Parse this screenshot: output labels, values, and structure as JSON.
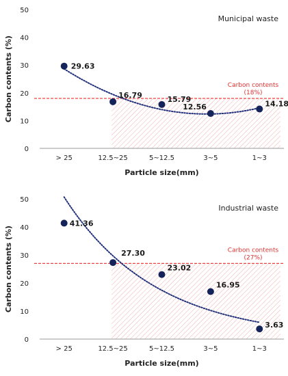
{
  "colors": {
    "point": "#14245a",
    "trend": "#1f2f7a",
    "reference": "#e03030",
    "hatch": "#f3b5b5",
    "axis": "#9a9a9a"
  },
  "chart_data": [
    {
      "type": "scatter",
      "title": "Municipal waste",
      "xlabel": "Particle size(mm)",
      "ylabel": "Carbon contents (%)",
      "categories": [
        "> 25",
        "12.5~25",
        "5~12.5",
        "3~5",
        "1~3"
      ],
      "values": [
        29.63,
        16.79,
        15.79,
        12.56,
        14.18
      ],
      "data_labels": [
        "29.63",
        "16.79",
        "15.79",
        "12.56",
        "14.18"
      ],
      "ylim": [
        0,
        50
      ],
      "yticks": [
        "0",
        "10",
        "20",
        "30",
        "40",
        "50"
      ],
      "trendline": "polynomial",
      "reference_line": {
        "value": 18,
        "label_line1": "Carbon contents",
        "label_line2": "(18%)"
      },
      "hatched_region": {
        "from_category": "12.5~25",
        "to_category": "1~3",
        "below_value": 18
      },
      "grid": false
    },
    {
      "type": "scatter",
      "title": "Industrial waste",
      "xlabel": "Particle size(mm)",
      "ylabel": "Carbon contents (%)",
      "categories": [
        "> 25",
        "12.5~25",
        "5~12.5",
        "3~5",
        "1~3"
      ],
      "values": [
        41.36,
        27.3,
        23.02,
        16.95,
        3.63
      ],
      "data_labels": [
        "41.36",
        "27.30",
        "23.02",
        "16.95",
        "3.63"
      ],
      "ylim": [
        0,
        50
      ],
      "yticks": [
        "0",
        "10",
        "20",
        "30",
        "40",
        "50"
      ],
      "trendline": "exponential",
      "reference_line": {
        "value": 27,
        "label_line1": "Carbon contents",
        "label_line2": "(27%)"
      },
      "hatched_region": {
        "from_category": "12.5~25",
        "to_category": "1~3",
        "below_value": 27
      },
      "grid": false
    }
  ]
}
